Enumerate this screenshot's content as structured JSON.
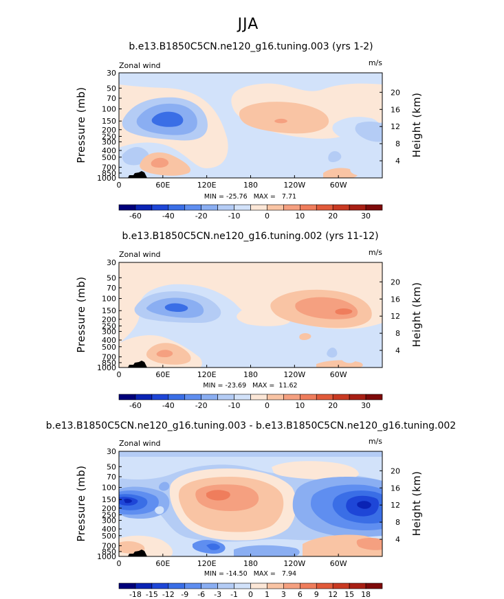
{
  "figure_title": "JJA",
  "chart_data": [
    {
      "type": "contour",
      "title": "b.e13.B1850C5CN.ne120_g16.tuning.003 (yrs 1-2)",
      "left_label": "Zonal wind",
      "units": "m/s",
      "ylabel": "Pressure (mb)",
      "y2label": "Height (km)",
      "xticks": [
        "0",
        "60E",
        "120E",
        "180",
        "120W",
        "60W"
      ],
      "yticks": [
        "30",
        "50",
        "70",
        "100",
        "150",
        "200",
        "250",
        "300",
        "400",
        "500",
        "700",
        "850",
        "1000"
      ],
      "y2ticks": [
        "20",
        "16",
        "12",
        "8",
        "4"
      ],
      "stats": "MIN = -25.76   MAX =   7.71",
      "colorbar_labels": [
        "-60",
        "-40",
        "-20",
        "-10",
        "0",
        "10",
        "20",
        "30"
      ]
    },
    {
      "type": "contour",
      "title": "b.e13.B1850C5CN.ne120_g16.tuning.002 (yrs 11-12)",
      "left_label": "Zonal wind",
      "units": "m/s",
      "ylabel": "Pressure (mb)",
      "y2label": "Height (km)",
      "xticks": [
        "0",
        "60E",
        "120E",
        "180",
        "120W",
        "60W"
      ],
      "yticks": [
        "30",
        "50",
        "70",
        "100",
        "150",
        "200",
        "250",
        "300",
        "400",
        "500",
        "700",
        "850",
        "1000"
      ],
      "y2ticks": [
        "20",
        "16",
        "12",
        "8",
        "4"
      ],
      "stats": "MIN = -23.69   MAX =  11.62",
      "colorbar_labels": [
        "-60",
        "-40",
        "-20",
        "-10",
        "0",
        "10",
        "20",
        "30"
      ]
    },
    {
      "type": "contour",
      "title": "b.e13.B1850C5CN.ne120_g16.tuning.003 - b.e13.B1850C5CN.ne120_g16.tuning.002",
      "left_label": "Zonal wind",
      "units": "m/s",
      "ylabel": "Pressure (mb)",
      "y2label": "Height (km)",
      "xticks": [
        "0",
        "60E",
        "120E",
        "180",
        "120W",
        "60W"
      ],
      "yticks": [
        "30",
        "50",
        "70",
        "100",
        "150",
        "200",
        "250",
        "300",
        "400",
        "500",
        "700",
        "850",
        "1000"
      ],
      "y2ticks": [
        "20",
        "16",
        "12",
        "8",
        "4"
      ],
      "stats": "MIN = -14.50   MAX =   7.94",
      "colorbar_labels": [
        "-18",
        "-15",
        "-12",
        "-9",
        "-6",
        "-3",
        "-1",
        "0",
        "1",
        "3",
        "6",
        "9",
        "12",
        "15",
        "18"
      ]
    }
  ],
  "colors": {
    "bar1": [
      "#00007a",
      "#0a23b4",
      "#1e46d7",
      "#3a6ee6",
      "#5f8ef0",
      "#8aaef2",
      "#b4ccf5",
      "#d2e2fa",
      "#fce7d7",
      "#f9c4a4",
      "#f5a080",
      "#ef7d5c",
      "#e15a3a",
      "#c93a22",
      "#a81f14",
      "#7e0a0a"
    ],
    "bar3": [
      "#00007a",
      "#0a23b4",
      "#1e46d7",
      "#3a6ee6",
      "#5f8ef0",
      "#8aaef2",
      "#b4ccf5",
      "#d2e2fa",
      "#fce7d7",
      "#f9c4a4",
      "#f5a080",
      "#ef7d5c",
      "#e15a3a",
      "#c93a22",
      "#a81f14",
      "#7e0a0a"
    ],
    "terrain": "#000000"
  }
}
